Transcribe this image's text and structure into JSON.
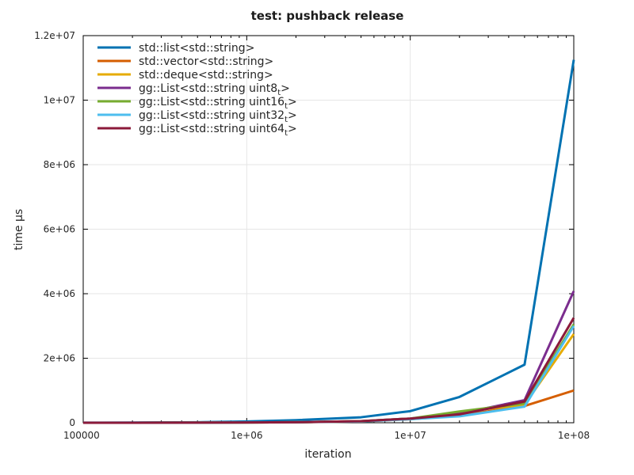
{
  "chart_data": {
    "type": "line",
    "title": "test: pushback release",
    "xlabel": "iteration",
    "ylabel": "time μs",
    "x_scale": "log",
    "xlim": [
      100000,
      100000000
    ],
    "ylim": [
      0,
      12000000
    ],
    "x_ticks": [
      100000,
      1000000,
      10000000,
      100000000
    ],
    "x_tick_labels": [
      "100000",
      "1e+06",
      "1e+07",
      "1e+08"
    ],
    "y_ticks": [
      0,
      2000000,
      4000000,
      6000000,
      8000000,
      10000000,
      12000000
    ],
    "y_tick_labels": [
      "0",
      "2e+06",
      "4e+06",
      "6e+06",
      "8e+06",
      "1e+07",
      "1.2e+07"
    ],
    "grid": true,
    "legend_position": "top-left",
    "x": [
      100000,
      200000,
      500000,
      1000000,
      2000000,
      5000000,
      10000000,
      20000000,
      50000000,
      100000000
    ],
    "series": [
      {
        "name": "std::list<std::string>",
        "name_main": "std::list<std::string>",
        "name_sub": "",
        "name_end": "",
        "color": "#0072b2",
        "values": [
          2000,
          5000,
          15000,
          40000,
          80000,
          170000,
          360000,
          800000,
          1800000,
          11250000
        ]
      },
      {
        "name": "std::vector<std::string>",
        "name_main": "std::vector<std::string>",
        "name_sub": "",
        "name_end": "",
        "color": "#d55e00",
        "values": [
          500,
          1000,
          3000,
          8000,
          16000,
          40000,
          110000,
          220000,
          520000,
          1000000
        ]
      },
      {
        "name": "std::deque<std::string>",
        "name_main": "std::deque<std::string>",
        "name_sub": "",
        "name_end": "",
        "color": "#e6ab02",
        "values": [
          500,
          1000,
          3000,
          8000,
          16000,
          45000,
          120000,
          330000,
          560000,
          2750000
        ]
      },
      {
        "name": "gg::List<std::string uint8_t>",
        "name_main": "gg::List<std::string uint8",
        "name_sub": "t",
        "name_end": ">",
        "color": "#7b2d8e",
        "values": [
          500,
          1000,
          3000,
          8000,
          16000,
          50000,
          130000,
          280000,
          700000,
          4080000
        ]
      },
      {
        "name": "gg::List<std::string uint16_t>",
        "name_main": "gg::List<std::string uint16",
        "name_sub": "t",
        "name_end": ">",
        "color": "#77ac30",
        "values": [
          500,
          1000,
          3000,
          8000,
          16000,
          48000,
          130000,
          350000,
          600000,
          3050000
        ]
      },
      {
        "name": "gg::List<std::string uint32_t>",
        "name_main": "gg::List<std::string uint32",
        "name_sub": "t",
        "name_end": ">",
        "color": "#4dbeee",
        "values": [
          500,
          1000,
          3000,
          8000,
          16000,
          40000,
          110000,
          200000,
          500000,
          3000000
        ]
      },
      {
        "name": "gg::List<std::string uint64_t>",
        "name_main": "gg::List<std::string uint64",
        "name_sub": "t",
        "name_end": ">",
        "color": "#8b1a3a",
        "values": [
          500,
          1000,
          3000,
          8000,
          16000,
          50000,
          130000,
          260000,
          660000,
          3250000
        ]
      }
    ]
  }
}
